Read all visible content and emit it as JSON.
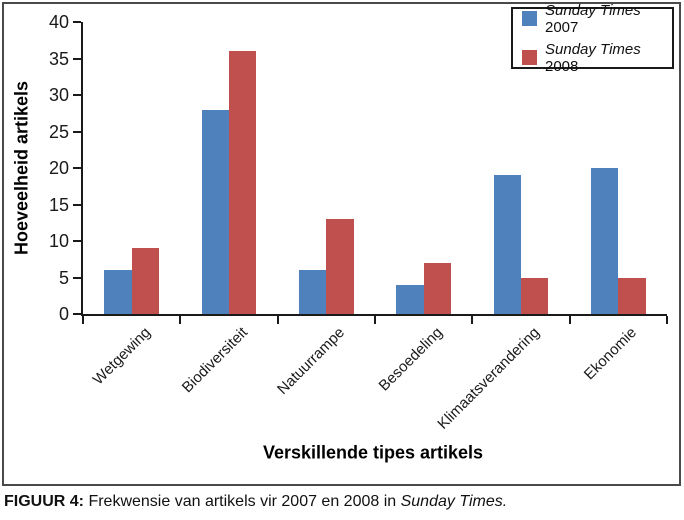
{
  "figure": {
    "caption_label": "FIGUUR 4:",
    "caption_text": " Frekwensie van artikels vir 2007 en 2008 in ",
    "caption_italic": "Sunday Times."
  },
  "chart_data": {
    "type": "bar",
    "title": "",
    "categories": [
      "Wetgewing",
      "Biodiversiteit",
      "Natuurrampe",
      "Besoedeling",
      "Klimaatsverandering",
      "Ekonomie"
    ],
    "series": [
      {
        "name_italic": "Sunday Times",
        "name_year": "2007",
        "label": "Sunday Times 2007",
        "color": "#4F81BD",
        "values": [
          6,
          28,
          6,
          4,
          19,
          20
        ]
      },
      {
        "name_italic": "Sunday Times",
        "name_year": "2008",
        "label": "Sunday Times 2008",
        "color": "#C0504D",
        "values": [
          9,
          36,
          13,
          7,
          5,
          5
        ]
      }
    ],
    "xlabel": "Verskillende tipes artikels",
    "ylabel": "Hoeveelheid artikels",
    "ylim": [
      0,
      40
    ],
    "ytick_step": 5,
    "yticks": [
      0,
      5,
      10,
      15,
      20,
      25,
      30,
      35,
      40
    ],
    "grid": false,
    "legend_position": "top-right"
  }
}
